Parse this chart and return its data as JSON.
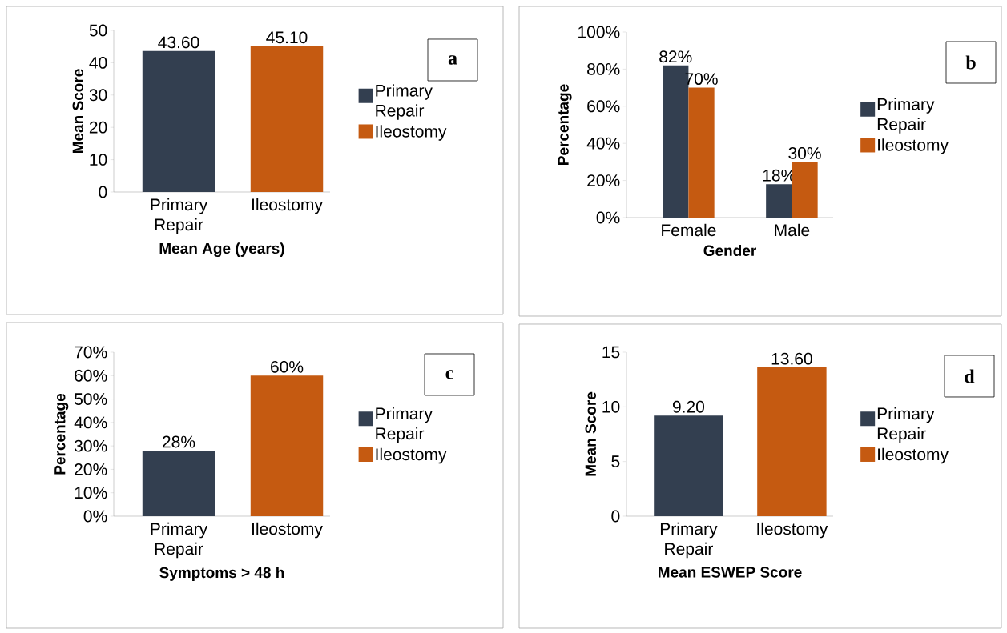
{
  "chart_data": [
    {
      "type": "bar",
      "categories": [
        "Primary Repair",
        "Ileostomy"
      ],
      "series": [
        {
          "name": "Primary Repair",
          "color": "#333f50",
          "values": [
            43.6,
            null
          ],
          "value_labels": [
            "43.60",
            null
          ]
        },
        {
          "name": "Ileostomy",
          "color": "#c55a11",
          "values": [
            null,
            45.1
          ],
          "value_labels": [
            null,
            "45.10"
          ]
        }
      ],
      "xlabel": "Mean Age (years)",
      "ylabel": "Mean Score",
      "ylim": [
        0,
        50
      ],
      "yticks": [
        0,
        10,
        20,
        30,
        40,
        50
      ],
      "legend": "right",
      "annotations": [
        "a"
      ]
    },
    {
      "type": "bar",
      "categories": [
        "Female",
        "Male"
      ],
      "series": [
        {
          "name": "Primary Repair",
          "color": "#333f50",
          "values": [
            82,
            18
          ],
          "value_labels": [
            "82%",
            "18%"
          ]
        },
        {
          "name": "Ileostomy",
          "color": "#c55a11",
          "values": [
            70,
            30
          ],
          "value_labels": [
            "70%",
            "30%"
          ]
        }
      ],
      "xlabel": "Gender",
      "ylabel": "Percentage",
      "ylim": [
        0,
        100
      ],
      "yticks": [
        {
          "value": 0,
          "label": "0%"
        },
        {
          "value": 20,
          "label": "20%"
        },
        {
          "value": 40,
          "label": "40%"
        },
        {
          "value": 60,
          "label": "60%"
        },
        {
          "value": 80,
          "label": "80%"
        },
        {
          "value": 100,
          "label": "100%"
        }
      ],
      "legend": "right",
      "annotations": [
        "b"
      ]
    },
    {
      "type": "bar",
      "categories": [
        "Primary Repair",
        "Ileostomy"
      ],
      "series": [
        {
          "name": "Primary Repair",
          "color": "#333f50",
          "values": [
            28,
            null
          ],
          "value_labels": [
            "28%",
            null
          ]
        },
        {
          "name": "Ileostomy",
          "color": "#c55a11",
          "values": [
            null,
            60
          ],
          "value_labels": [
            null,
            "60%"
          ]
        }
      ],
      "xlabel": "Symptoms > 48 h",
      "ylabel": "Percentage",
      "ylim": [
        0,
        70
      ],
      "yticks": [
        {
          "value": 0,
          "label": "0%"
        },
        {
          "value": 10,
          "label": "10%"
        },
        {
          "value": 20,
          "label": "20%"
        },
        {
          "value": 30,
          "label": "30%"
        },
        {
          "value": 40,
          "label": "40%"
        },
        {
          "value": 50,
          "label": "50%"
        },
        {
          "value": 60,
          "label": "60%"
        },
        {
          "value": 70,
          "label": "70%"
        }
      ],
      "legend": "right",
      "annotations": [
        "c"
      ]
    },
    {
      "type": "bar",
      "categories": [
        "Primary Repair",
        "Ileostomy"
      ],
      "series": [
        {
          "name": "Primary Repair",
          "color": "#333f50",
          "values": [
            9.2,
            null
          ],
          "value_labels": [
            "9.20",
            null
          ]
        },
        {
          "name": "Ileostomy",
          "color": "#c55a11",
          "values": [
            null,
            13.6
          ],
          "value_labels": [
            null,
            "13.60"
          ]
        }
      ],
      "xlabel": "Mean ESWEP Score",
      "ylabel": "Mean Score",
      "ylim": [
        0,
        15
      ],
      "yticks": [
        0,
        5,
        10,
        15
      ],
      "legend": "right",
      "annotations": [
        "d"
      ]
    }
  ]
}
